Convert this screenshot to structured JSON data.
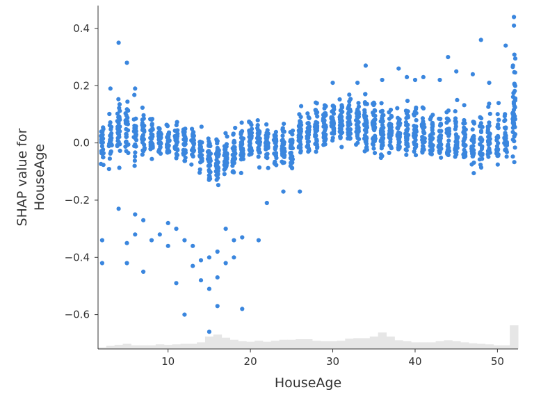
{
  "chart_data": {
    "type": "scatter",
    "title": "",
    "xlabel": "HouseAge",
    "ylabel_lines": [
      "SHAP value for",
      "HouseAge"
    ],
    "xlim": [
      1.5,
      52.5
    ],
    "ylim": [
      -0.72,
      0.48
    ],
    "xticks": [
      {
        "value": 10,
        "label": "10"
      },
      {
        "value": 20,
        "label": "20"
      },
      {
        "value": 30,
        "label": "30"
      },
      {
        "value": 40,
        "label": "40"
      },
      {
        "value": 50,
        "label": "50"
      }
    ],
    "yticks": [
      {
        "value": 0.4,
        "label": "0.4"
      },
      {
        "value": 0.2,
        "label": "0.2"
      },
      {
        "value": 0.0,
        "label": "0.0"
      },
      {
        "value": -0.2,
        "label": "−0.2"
      },
      {
        "value": -0.4,
        "label": "−0.4"
      },
      {
        "value": -0.6,
        "label": "−0.6"
      }
    ],
    "point_color": "#3a86de",
    "histogram_color": "#e6e6e6",
    "grid": false,
    "spines": [
      "left",
      "bottom"
    ],
    "scatter": {
      "ages": [
        2,
        3,
        4,
        5,
        6,
        7,
        8,
        9,
        10,
        11,
        12,
        13,
        14,
        15,
        16,
        17,
        18,
        19,
        20,
        21,
        22,
        23,
        24,
        25,
        26,
        27,
        28,
        29,
        30,
        31,
        32,
        33,
        34,
        35,
        36,
        37,
        38,
        39,
        40,
        41,
        42,
        43,
        44,
        45,
        46,
        47,
        48,
        49,
        50,
        51,
        52
      ],
      "center": [
        0.02,
        0.03,
        0.05,
        0.06,
        0.05,
        0.03,
        0.01,
        0.0,
        0.0,
        -0.01,
        -0.01,
        -0.01,
        -0.03,
        -0.05,
        -0.06,
        -0.05,
        -0.04,
        -0.02,
        0.0,
        0.0,
        -0.01,
        -0.01,
        -0.01,
        -0.02,
        0.0,
        0.01,
        0.02,
        0.03,
        0.04,
        0.05,
        0.05,
        0.05,
        0.05,
        0.04,
        0.03,
        0.03,
        0.02,
        0.02,
        0.01,
        0.0,
        0.0,
        0.0,
        -0.01,
        -0.01,
        -0.02,
        -0.02,
        -0.02,
        -0.02,
        -0.01,
        0.0,
        0.06
      ],
      "band_low": [
        -0.16,
        -0.12,
        -0.14,
        -0.12,
        -0.12,
        -0.1,
        -0.08,
        -0.08,
        -0.08,
        -0.08,
        -0.1,
        -0.1,
        -0.12,
        -0.16,
        -0.18,
        -0.18,
        -0.16,
        -0.12,
        -0.1,
        -0.1,
        -0.1,
        -0.12,
        -0.12,
        -0.12,
        -0.06,
        -0.06,
        -0.04,
        -0.03,
        -0.03,
        -0.02,
        -0.04,
        -0.05,
        -0.06,
        -0.08,
        -0.1,
        -0.08,
        -0.08,
        -0.08,
        -0.08,
        -0.08,
        -0.08,
        -0.08,
        -0.1,
        -0.1,
        -0.12,
        -0.14,
        -0.14,
        -0.12,
        -0.12,
        -0.1,
        -0.1
      ],
      "band_high": [
        0.16,
        0.18,
        0.24,
        0.22,
        0.2,
        0.16,
        0.14,
        0.1,
        0.1,
        0.1,
        0.12,
        0.1,
        0.08,
        0.06,
        0.06,
        0.08,
        0.1,
        0.12,
        0.12,
        0.12,
        0.1,
        0.1,
        0.1,
        0.08,
        0.14,
        0.16,
        0.16,
        0.18,
        0.2,
        0.2,
        0.2,
        0.2,
        0.22,
        0.2,
        0.18,
        0.16,
        0.16,
        0.18,
        0.18,
        0.16,
        0.14,
        0.14,
        0.18,
        0.2,
        0.16,
        0.14,
        0.16,
        0.18,
        0.16,
        0.16,
        0.36
      ],
      "counts": [
        16,
        14,
        22,
        18,
        18,
        18,
        18,
        16,
        18,
        16,
        20,
        16,
        20,
        26,
        30,
        28,
        28,
        26,
        24,
        24,
        24,
        26,
        26,
        26,
        28,
        24,
        28,
        28,
        28,
        28,
        28,
        30,
        32,
        32,
        36,
        30,
        26,
        24,
        24,
        24,
        24,
        22,
        24,
        22,
        22,
        20,
        20,
        22,
        18,
        20,
        40
      ],
      "outliers_low": [
        [
          2,
          -0.34
        ],
        [
          2,
          -0.42
        ],
        [
          4,
          -0.23
        ],
        [
          5,
          -0.35
        ],
        [
          5,
          -0.42
        ],
        [
          6,
          -0.25
        ],
        [
          6,
          -0.32
        ],
        [
          7,
          -0.45
        ],
        [
          7,
          -0.27
        ],
        [
          8,
          -0.34
        ],
        [
          9,
          -0.32
        ],
        [
          10,
          -0.28
        ],
        [
          10,
          -0.36
        ],
        [
          11,
          -0.49
        ],
        [
          11,
          -0.3
        ],
        [
          12,
          -0.6
        ],
        [
          12,
          -0.34
        ],
        [
          13,
          -0.43
        ],
        [
          13,
          -0.36
        ],
        [
          14,
          -0.41
        ],
        [
          14,
          -0.48
        ],
        [
          15,
          -0.51
        ],
        [
          15,
          -0.66
        ],
        [
          15,
          -0.4
        ],
        [
          16,
          -0.47
        ],
        [
          16,
          -0.57
        ],
        [
          16,
          -0.38
        ],
        [
          17,
          -0.42
        ],
        [
          17,
          -0.3
        ],
        [
          18,
          -0.34
        ],
        [
          18,
          -0.4
        ],
        [
          19,
          -0.58
        ],
        [
          19,
          -0.33
        ],
        [
          21,
          -0.34
        ],
        [
          22,
          -0.21
        ],
        [
          24,
          -0.17
        ],
        [
          26,
          -0.17
        ]
      ],
      "outliers_high": [
        [
          4,
          0.35
        ],
        [
          5,
          0.28
        ],
        [
          3,
          0.19
        ],
        [
          6,
          0.19
        ],
        [
          30,
          0.21
        ],
        [
          33,
          0.21
        ],
        [
          34,
          0.27
        ],
        [
          36,
          0.22
        ],
        [
          38,
          0.26
        ],
        [
          39,
          0.23
        ],
        [
          40,
          0.22
        ],
        [
          41,
          0.23
        ],
        [
          43,
          0.22
        ],
        [
          44,
          0.3
        ],
        [
          45,
          0.25
        ],
        [
          47,
          0.24
        ],
        [
          48,
          0.36
        ],
        [
          49,
          0.21
        ],
        [
          51,
          0.34
        ],
        [
          52,
          0.44
        ],
        [
          52,
          0.41
        ]
      ]
    },
    "histogram": {
      "bins": [
        2,
        3,
        4,
        5,
        6,
        7,
        8,
        9,
        10,
        11,
        12,
        13,
        14,
        15,
        16,
        17,
        18,
        19,
        20,
        21,
        22,
        23,
        24,
        25,
        26,
        27,
        28,
        29,
        30,
        31,
        32,
        33,
        34,
        35,
        36,
        37,
        38,
        39,
        40,
        41,
        42,
        43,
        44,
        45,
        46,
        47,
        48,
        49,
        50,
        51,
        52
      ],
      "counts": [
        6,
        12,
        16,
        20,
        14,
        14,
        14,
        18,
        16,
        18,
        20,
        20,
        26,
        48,
        56,
        44,
        36,
        30,
        28,
        32,
        28,
        32,
        36,
        36,
        38,
        38,
        32,
        30,
        30,
        32,
        40,
        42,
        42,
        48,
        64,
        48,
        34,
        30,
        26,
        26,
        26,
        30,
        34,
        30,
        26,
        22,
        20,
        18,
        14,
        14,
        92
      ]
    }
  }
}
